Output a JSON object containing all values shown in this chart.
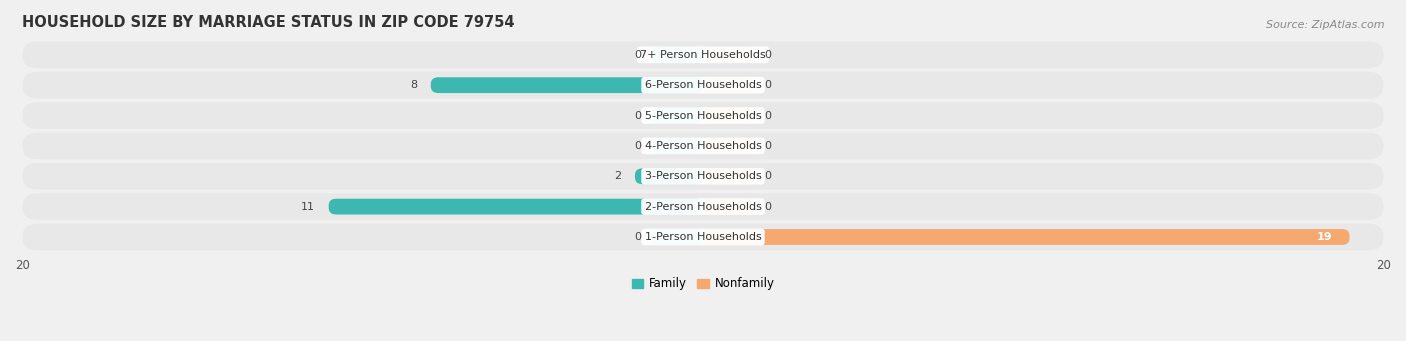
{
  "title": "HOUSEHOLD SIZE BY MARRIAGE STATUS IN ZIP CODE 79754",
  "source": "Source: ZipAtlas.com",
  "categories": [
    "7+ Person Households",
    "6-Person Households",
    "5-Person Households",
    "4-Person Households",
    "3-Person Households",
    "2-Person Households",
    "1-Person Households"
  ],
  "family": [
    0,
    8,
    0,
    0,
    2,
    11,
    0
  ],
  "nonfamily": [
    0,
    0,
    0,
    0,
    0,
    0,
    19
  ],
  "family_color": "#3db8b0",
  "nonfamily_color": "#f5a96e",
  "zero_stub_family": "#7dd4d0",
  "zero_stub_nonfamily": "#f5c89e",
  "xlim": [
    -20,
    20
  ],
  "title_fontsize": 10.5,
  "source_fontsize": 8,
  "label_fontsize": 8,
  "tick_fontsize": 8.5,
  "bar_height": 0.52,
  "row_bg_color": "#e8e8e8",
  "legend_family": "Family",
  "legend_nonfamily": "Nonfamily"
}
